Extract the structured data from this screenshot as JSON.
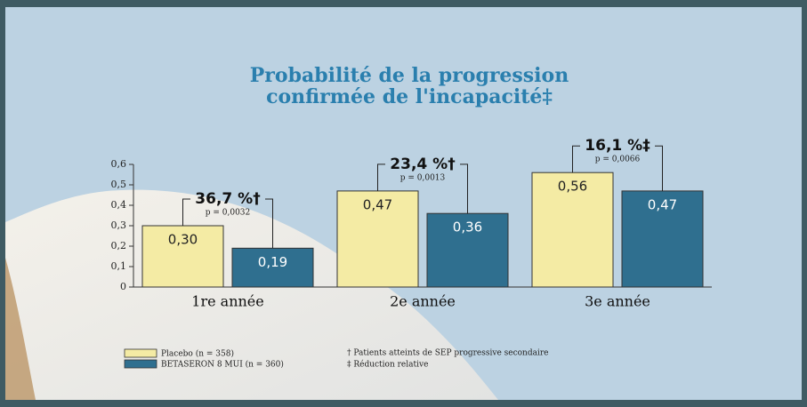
{
  "chart_data": {
    "type": "bar",
    "title": [
      "Probabilité de la progression",
      "confirmée de l'incapacité‡"
    ],
    "categories": [
      "1re année",
      "2e année",
      "3e année"
    ],
    "series": [
      {
        "name": "Placebo (n = 358)",
        "color": "#f4eba4",
        "values": [
          0.3,
          0.47,
          0.56
        ],
        "value_labels": [
          "0,30",
          "0,47",
          "0,56"
        ]
      },
      {
        "name": "BETASERON 8 MUI (n = 360)",
        "color": "#2f6f8f",
        "values": [
          0.19,
          0.36,
          0.47
        ],
        "value_labels": [
          "0,19",
          "0,36",
          "0,47"
        ]
      }
    ],
    "annotations": [
      {
        "text": "36,7 %†",
        "p": "p = 0,0032"
      },
      {
        "text": "23,4 %†",
        "p": "p = 0,0013"
      },
      {
        "text": "16,1 %‡",
        "p": "p = 0,0066"
      }
    ],
    "footnotes": [
      "† Patients atteints de SEP progressive secondaire",
      "‡ Réduction relative"
    ],
    "ylim": [
      0,
      0.6
    ],
    "yticks": [
      0,
      {
        "value": 0.1,
        "label": "0,1"
      },
      {
        "value": 0.2,
        "label": "0,2"
      },
      {
        "value": 0.3,
        "label": "0,3"
      },
      {
        "value": 0.4,
        "label": "0,4"
      },
      {
        "value": 0.5,
        "label": "0,5"
      },
      {
        "value": 0.6,
        "label": "0,6"
      }
    ]
  }
}
